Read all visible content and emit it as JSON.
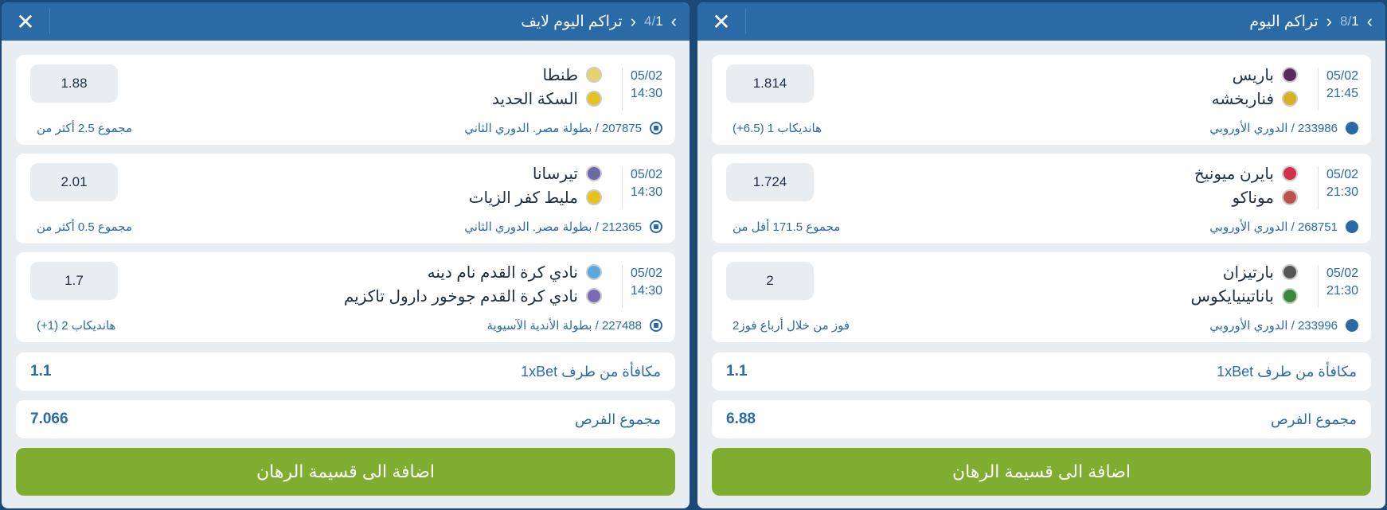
{
  "colors": {
    "header": "#2a6aa6",
    "button": "#7fad2f",
    "accent": "#2a6aa6"
  },
  "panels": [
    {
      "title": "تراكم اليوم لايف",
      "page_current": "1",
      "page_total": "4",
      "close_icon": "close-icon",
      "events": [
        {
          "date": "05/02",
          "time": "14:30",
          "team1": "طنطا",
          "team2": "السكة الحديد",
          "logo1": "#e8d36a",
          "logo2": "#e6c21a",
          "sport": "football-icon",
          "league": "207875 / بطولة مصر. الدوري الثاني",
          "market": "مجموع 2.5 أكثر من",
          "odd": "1.88"
        },
        {
          "date": "05/02",
          "time": "14:30",
          "team1": "تيرسانا",
          "team2": "مليط كفر الزيات",
          "logo1": "#6a6aa8",
          "logo2": "#e6c21a",
          "sport": "football-icon",
          "league": "212365 / بطولة مصر. الدوري الثاني",
          "market": "مجموع 0.5 أكثر من",
          "odd": "2.01"
        },
        {
          "date": "05/02",
          "time": "14:30",
          "team1": "نادي كرة القدم نام دينه",
          "team2": "نادي كرة القدم جوخور دارول تاكزيم",
          "logo1": "#5aa8e0",
          "logo2": "#7a6ab8",
          "sport": "football-icon",
          "league": "227488 / بطولة الأندية الآسيوية",
          "market": "هانديكاب 2 (1+)",
          "odd": "1.7"
        }
      ],
      "bonus_label": "مكافأة من طرف 1xBet",
      "bonus_value": "1.1",
      "total_label": "مجموع الفرص",
      "total_value": "7.066",
      "add_button": "اضافة الى قسيمة الرهان"
    },
    {
      "title": "تراكم اليوم",
      "page_current": "1",
      "page_total": "8",
      "close_icon": "close-icon",
      "events": [
        {
          "date": "05/02",
          "time": "21:45",
          "team1": "باريس",
          "team2": "فناربخشه",
          "logo1": "#5a2a5a",
          "logo2": "#d8b020",
          "sport": "basketball-icon",
          "league": "233986 / الدوري الأوروبي",
          "market": "هانديكاب 1 (6.5+)",
          "odd": "1.814"
        },
        {
          "date": "05/02",
          "time": "21:30",
          "team1": "بايرن ميونيخ",
          "team2": "موناكو",
          "logo1": "#d0304a",
          "logo2": "#c0504a",
          "sport": "basketball-icon",
          "league": "268751 / الدوري الأوروبي",
          "market": "مجموع 171.5 أقل من",
          "odd": "1.724"
        },
        {
          "date": "05/02",
          "time": "21:30",
          "team1": "بارتيزان",
          "team2": "باناتينيايكوس",
          "logo1": "#555555",
          "logo2": "#3a8a3a",
          "sport": "basketball-icon",
          "league": "233996 / الدوري الأوروبي",
          "market": "فوز من خلال أرباع فوز2",
          "odd": "2"
        }
      ],
      "bonus_label": "مكافأة من طرف 1xBet",
      "bonus_value": "1.1",
      "total_label": "مجموع الفرص",
      "total_value": "6.88",
      "add_button": "اضافة الى قسيمة الرهان"
    }
  ]
}
